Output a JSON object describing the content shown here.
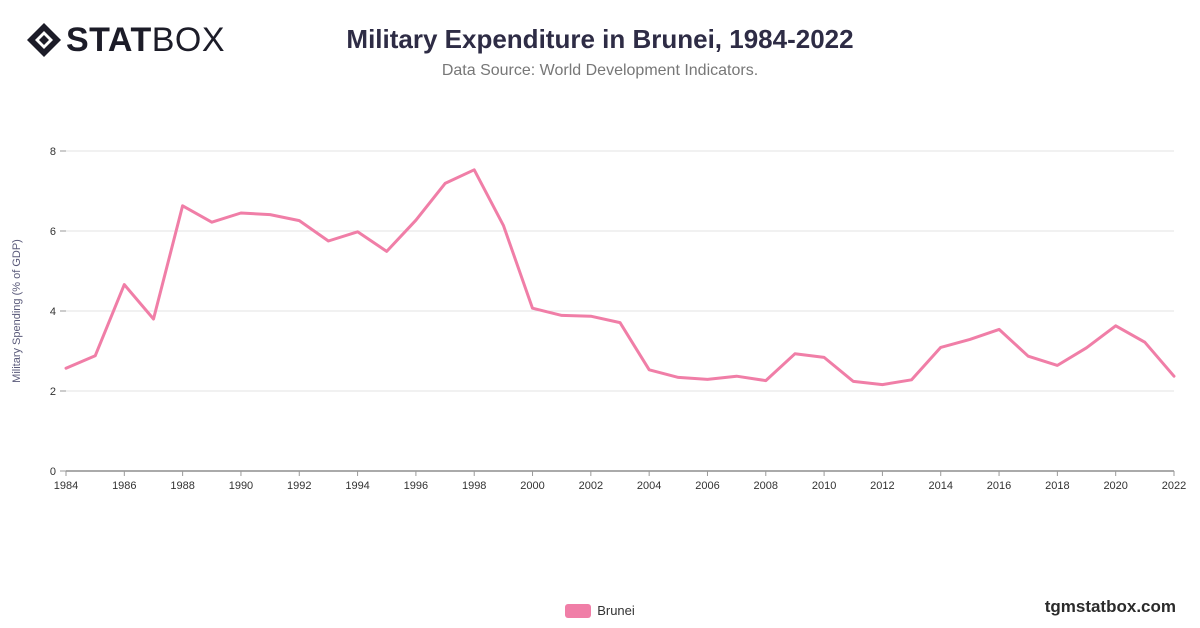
{
  "header": {
    "logo_bold": "STAT",
    "logo_light": "BOX",
    "title": "Military Expenditure in Brunei, 1984-2022",
    "subtitle": "Data Source: World Development Indicators."
  },
  "footer": {
    "website": "tgmstatbox.com"
  },
  "colors": {
    "series": "#f07ea7",
    "grid": "#e3e3e3",
    "axis": "#555555",
    "title": "#2e2c45"
  },
  "chart_data": {
    "type": "line",
    "title": "Military Expenditure in Brunei, 1984-2022",
    "subtitle": "Data Source: World Development Indicators.",
    "xlabel": "",
    "ylabel": "Military Spending (% of GDP)",
    "x": [
      1984,
      1985,
      1986,
      1987,
      1988,
      1989,
      1990,
      1991,
      1992,
      1993,
      1994,
      1995,
      1996,
      1997,
      1998,
      1999,
      2000,
      2001,
      2002,
      2003,
      2004,
      2005,
      2006,
      2007,
      2008,
      2009,
      2010,
      2011,
      2012,
      2013,
      2014,
      2015,
      2016,
      2017,
      2018,
      2019,
      2020,
      2021,
      2022
    ],
    "x_ticks": [
      1984,
      1986,
      1988,
      1990,
      1992,
      1994,
      1996,
      1998,
      2000,
      2002,
      2004,
      2006,
      2008,
      2010,
      2012,
      2014,
      2016,
      2018,
      2020,
      2022
    ],
    "xlim": [
      1984,
      2022
    ],
    "y_ticks": [
      0,
      2,
      4,
      6,
      8
    ],
    "ylim": [
      0,
      8
    ],
    "grid": true,
    "legend_position": "bottom-center",
    "series": [
      {
        "name": "Brunei",
        "color": "#f07ea7",
        "values": [
          2.57,
          2.88,
          4.66,
          3.8,
          6.63,
          6.22,
          6.45,
          6.41,
          6.26,
          5.75,
          5.98,
          5.49,
          6.27,
          7.19,
          7.53,
          6.14,
          4.07,
          3.89,
          3.87,
          3.71,
          2.53,
          2.34,
          2.29,
          2.37,
          2.26,
          2.93,
          2.84,
          2.24,
          2.16,
          2.28,
          3.09,
          3.29,
          3.54,
          2.87,
          2.64,
          3.08,
          3.63,
          3.22,
          2.37
        ]
      }
    ]
  }
}
